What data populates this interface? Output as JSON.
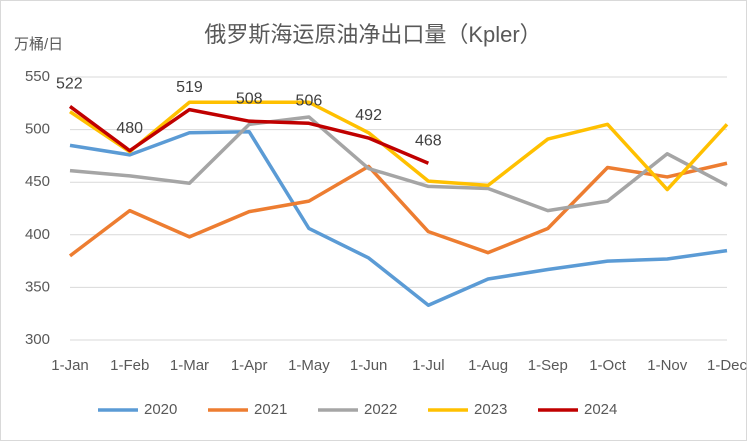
{
  "chart_data": {
    "type": "line",
    "title": "俄罗斯海运原油净出口量（Kpler）",
    "y_label": "万桶/日",
    "categories": [
      "1-Jan",
      "1-Feb",
      "1-Mar",
      "1-Apr",
      "1-May",
      "1-Jun",
      "1-Jul",
      "1-Aug",
      "1-Sep",
      "1-Oct",
      "1-Nov",
      "1-Dec"
    ],
    "series": [
      {
        "name": "2020",
        "color": "#5b9bd5",
        "values": [
          485,
          476,
          497,
          498,
          406,
          378,
          333,
          358,
          367,
          375,
          377,
          385
        ]
      },
      {
        "name": "2021",
        "color": "#ed7d31",
        "values": [
          380,
          423,
          398,
          422,
          432,
          465,
          403,
          383,
          406,
          464,
          455,
          468
        ]
      },
      {
        "name": "2022",
        "color": "#a5a5a5",
        "values": [
          461,
          456,
          449,
          505,
          512,
          463,
          446,
          444,
          423,
          432,
          477,
          447
        ]
      },
      {
        "name": "2023",
        "color": "#ffc000",
        "values": [
          517,
          479,
          526,
          526,
          526,
          497,
          451,
          447,
          491,
          505,
          443,
          505
        ]
      },
      {
        "name": "2024",
        "color": "#c00000",
        "data_labels": true,
        "values": [
          522,
          480,
          519,
          508,
          506,
          492,
          468,
          null,
          null,
          null,
          null,
          null
        ]
      }
    ],
    "ylim": [
      300,
      550
    ],
    "yticks": [
      300,
      350,
      400,
      450,
      500,
      550
    ],
    "grid": true,
    "legend": "bottom"
  }
}
